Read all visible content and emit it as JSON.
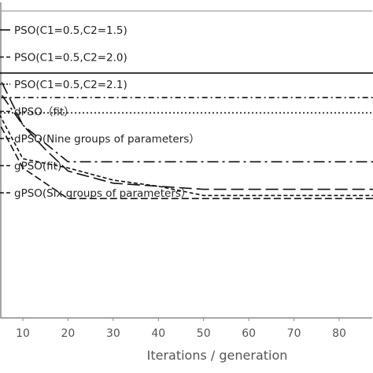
{
  "chart_data": {
    "type": "line",
    "title": "",
    "xlabel": "Iterations / generation",
    "ylabel": "",
    "x_ticks": [
      10,
      20,
      30,
      40,
      50,
      60,
      70,
      80
    ],
    "xlim": [
      0,
      90
    ],
    "ylim": [
      0,
      1
    ],
    "grid": false,
    "legend_position": "top-left",
    "series": [
      {
        "name": "PSO(C1=0.5,C2=1.5)",
        "dash": "solid",
        "x": [
          0,
          5,
          80,
          90
        ],
        "y": [
          0.86,
          0.8,
          0.8,
          0.8
        ]
      },
      {
        "name": "PSO(C1=0.5,C2=2.0)",
        "dash": "long-dash",
        "x": [
          0,
          5,
          10,
          15,
          20,
          30,
          40,
          50,
          60,
          70,
          80,
          90
        ],
        "y": [
          0.85,
          0.78,
          0.63,
          0.55,
          0.48,
          0.44,
          0.43,
          0.42,
          0.42,
          0.42,
          0.42,
          0.42
        ]
      },
      {
        "name": "PSO(C1=0.5,C2=2.1)",
        "dash": "dotted",
        "x": [
          0,
          5,
          90
        ],
        "y": [
          0.76,
          0.67,
          0.67
        ]
      },
      {
        "name": "dPSO（fit）",
        "dash": "long-dash-dot",
        "x": [
          0,
          10,
          20,
          30,
          40,
          50,
          60,
          70,
          80,
          90
        ],
        "y": [
          0.84,
          0.63,
          0.51,
          0.51,
          0.51,
          0.51,
          0.51,
          0.51,
          0.51,
          0.51
        ]
      },
      {
        "name": "dPSO(Nine groups of parameters）",
        "dash": "dash-dot",
        "x": [
          0,
          5,
          90
        ],
        "y": [
          0.76,
          0.72,
          0.72
        ]
      },
      {
        "name": "gPSO(fit)",
        "dash": "short-dash",
        "x": [
          0,
          5,
          10,
          20,
          30,
          40,
          50,
          60,
          70,
          80,
          90
        ],
        "y": [
          0.79,
          0.66,
          0.52,
          0.49,
          0.45,
          0.43,
          0.4,
          0.4,
          0.4,
          0.4,
          0.4
        ]
      },
      {
        "name": "gPSO(Six groups of parameters）",
        "dash": "medium-dash",
        "x": [
          0,
          5,
          10,
          20,
          30,
          40,
          50,
          60,
          70,
          80,
          90
        ],
        "y": [
          0.81,
          0.63,
          0.49,
          0.39,
          0.39,
          0.39,
          0.39,
          0.39,
          0.39,
          0.39,
          0.39
        ]
      }
    ]
  }
}
